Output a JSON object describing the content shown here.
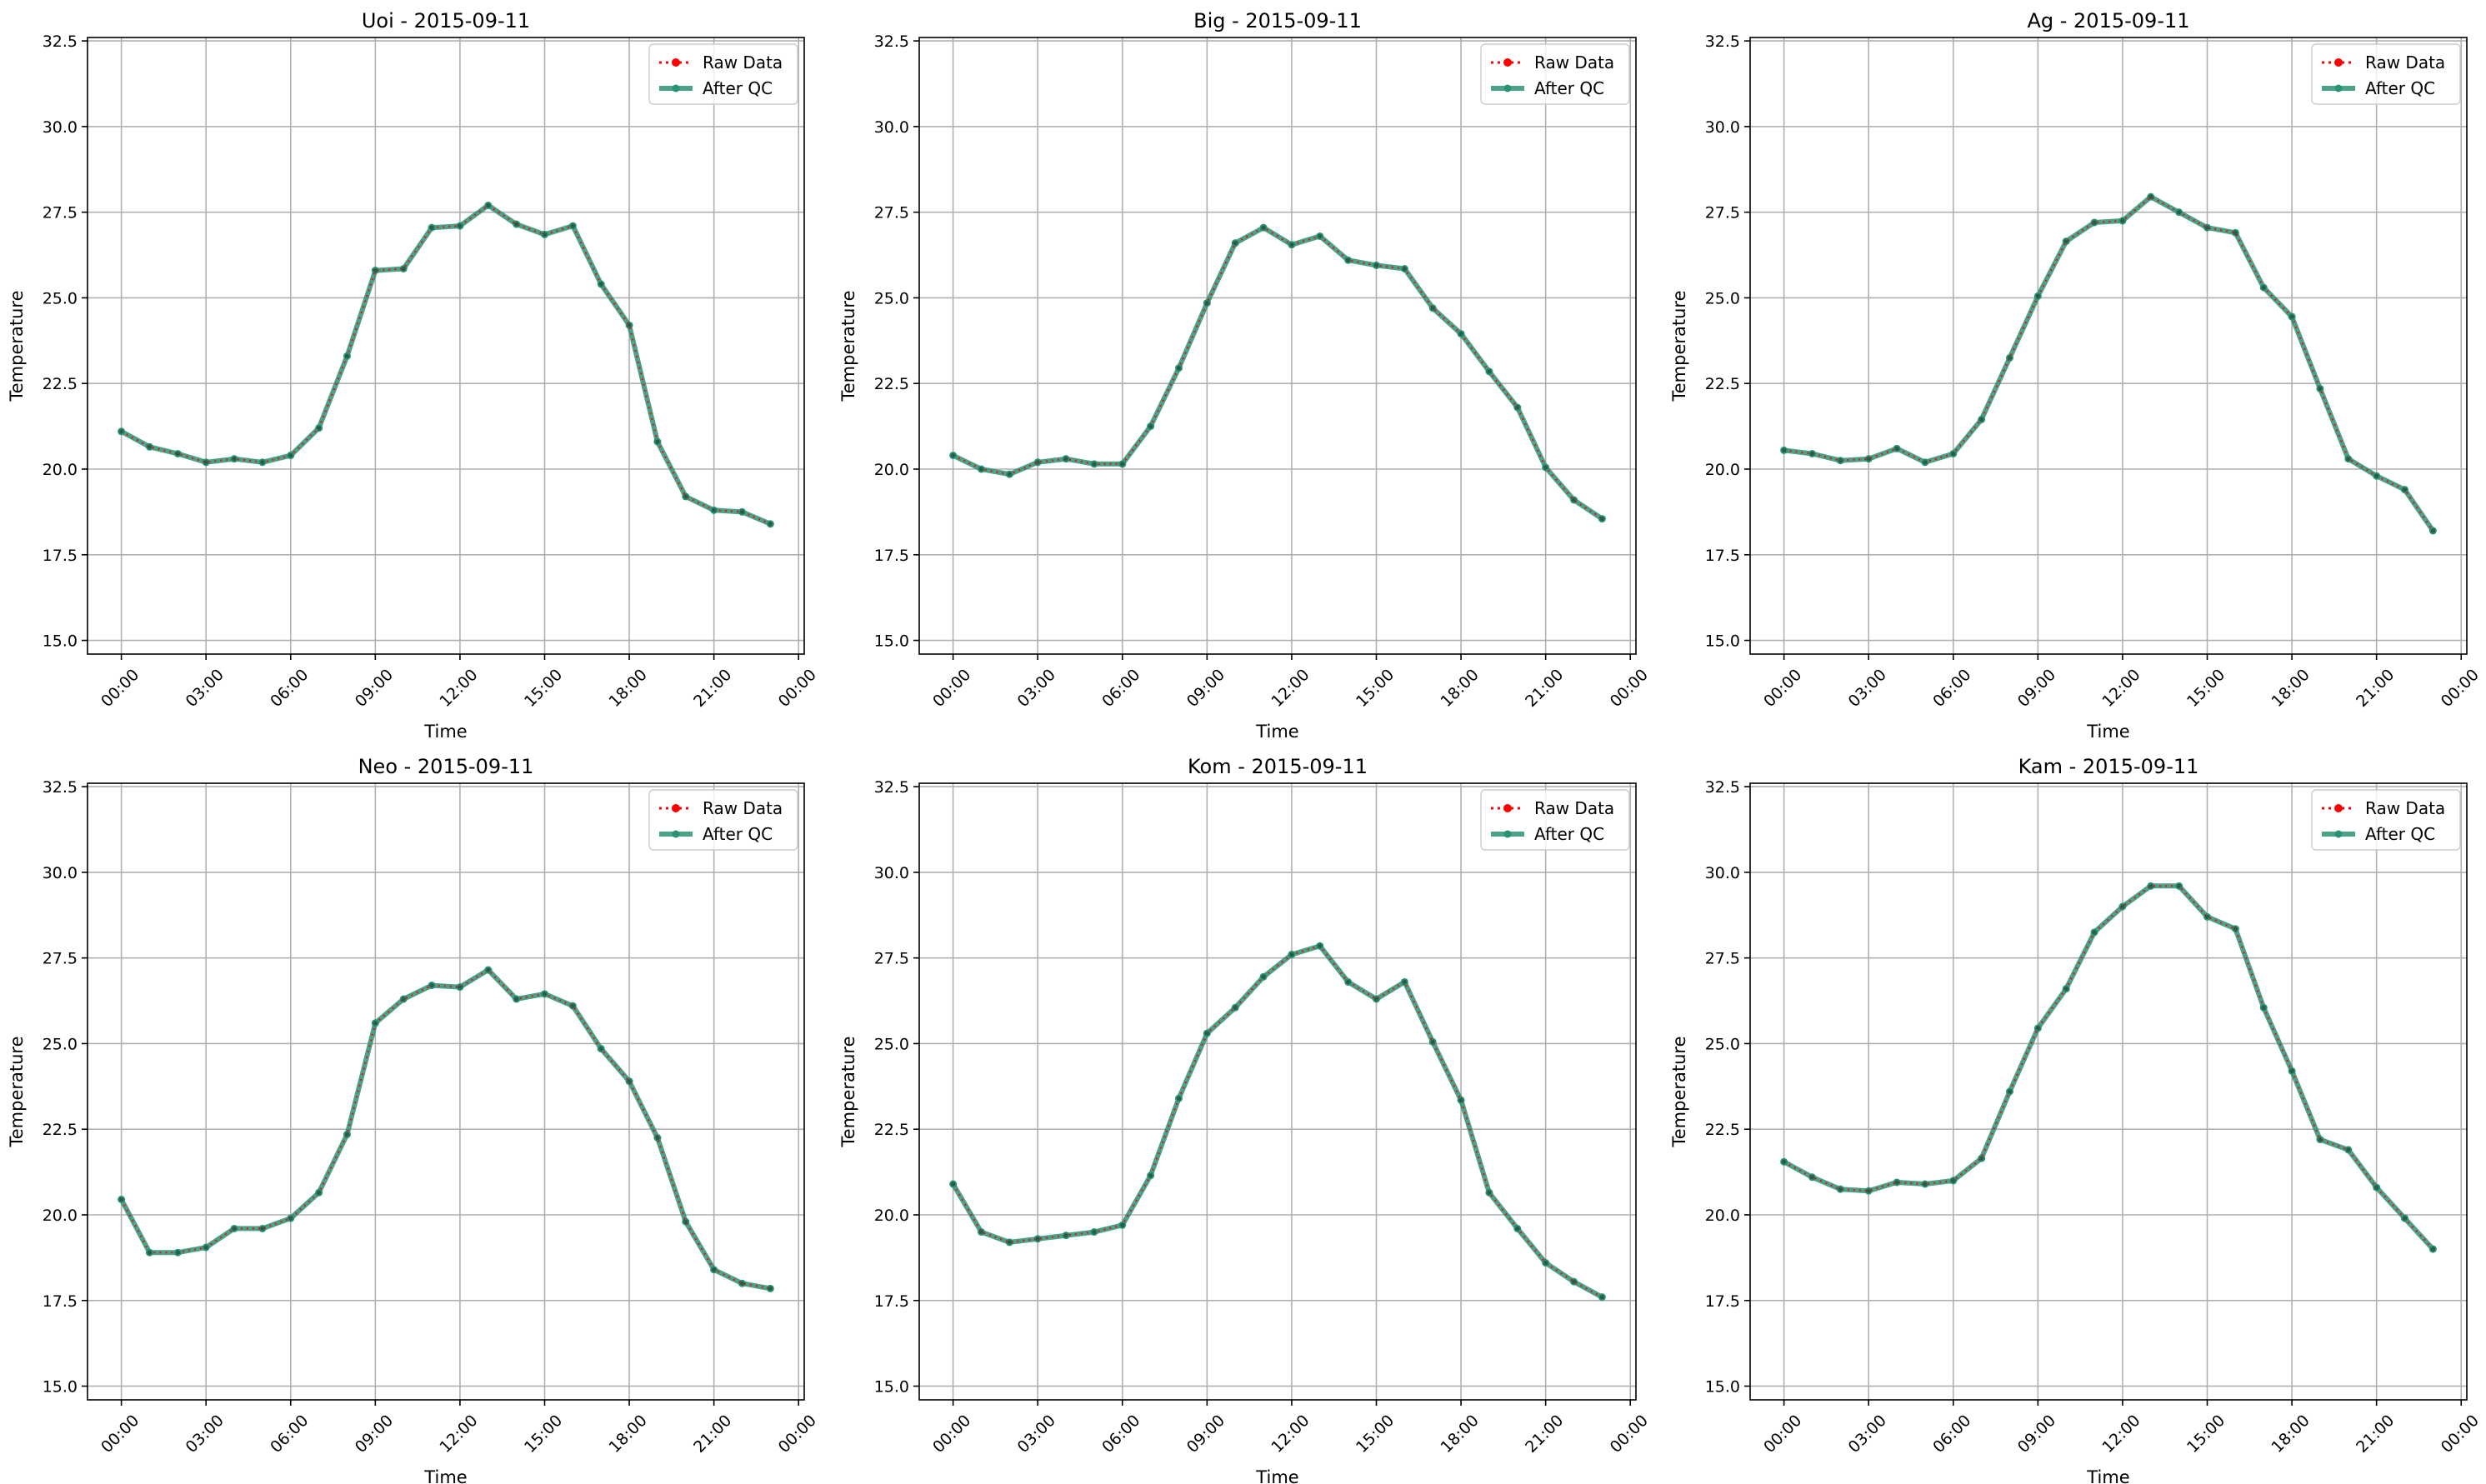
{
  "figure": {
    "background": "#ffffff"
  },
  "colors": {
    "raw": "#ff0000",
    "qc": "#2a9274",
    "grid": "#b0b0b0",
    "axis": "#000000",
    "legend_border": "#cccccc"
  },
  "legend": {
    "placement": "upper-right",
    "entries": [
      "Raw Data",
      "After QC"
    ]
  },
  "chart_data": [
    {
      "type": "line",
      "title": "Uoi - 2015-09-11",
      "xlabel": "Time",
      "ylabel": "Temperature",
      "ylim": [
        14.6,
        32.6
      ],
      "xlim": [
        -1.2,
        24.2
      ],
      "yticks": [
        "15.0",
        "17.5",
        "20.0",
        "22.5",
        "25.0",
        "27.5",
        "30.0",
        "32.5"
      ],
      "xticks": [
        "00:00",
        "03:00",
        "06:00",
        "09:00",
        "12:00",
        "15:00",
        "18:00",
        "21:00",
        "00:00"
      ],
      "grid": true,
      "legend_placement": "upper-right",
      "x": [
        "00:00",
        "01:00",
        "02:00",
        "03:00",
        "04:00",
        "05:00",
        "06:00",
        "07:00",
        "08:00",
        "09:00",
        "10:00",
        "11:00",
        "12:00",
        "13:00",
        "14:00",
        "15:00",
        "16:00",
        "17:00",
        "18:00",
        "19:00",
        "20:00",
        "21:00",
        "22:00",
        "23:00"
      ],
      "series": [
        {
          "name": "Raw Data",
          "values": [
            21.1,
            20.65,
            20.45,
            20.2,
            20.3,
            20.2,
            20.4,
            21.2,
            23.3,
            25.8,
            25.85,
            27.05,
            27.1,
            27.7,
            27.15,
            26.85,
            27.1,
            25.4,
            24.2,
            20.8,
            19.2,
            18.8,
            18.75,
            18.4
          ]
        },
        {
          "name": "After QC",
          "values": [
            21.1,
            20.65,
            20.45,
            20.2,
            20.3,
            20.2,
            20.4,
            21.2,
            23.3,
            25.8,
            25.85,
            27.05,
            27.1,
            27.7,
            27.15,
            26.85,
            27.1,
            25.4,
            24.2,
            20.8,
            19.2,
            18.8,
            18.75,
            18.4
          ]
        }
      ]
    },
    {
      "type": "line",
      "title": "Big - 2015-09-11",
      "xlabel": "Time",
      "ylabel": "Temperature",
      "ylim": [
        14.6,
        32.6
      ],
      "xlim": [
        -1.2,
        24.2
      ],
      "yticks": [
        "15.0",
        "17.5",
        "20.0",
        "22.5",
        "25.0",
        "27.5",
        "30.0",
        "32.5"
      ],
      "xticks": [
        "00:00",
        "03:00",
        "06:00",
        "09:00",
        "12:00",
        "15:00",
        "18:00",
        "21:00",
        "00:00"
      ],
      "grid": true,
      "legend_placement": "upper-right",
      "x": [
        "00:00",
        "01:00",
        "02:00",
        "03:00",
        "04:00",
        "05:00",
        "06:00",
        "07:00",
        "08:00",
        "09:00",
        "10:00",
        "11:00",
        "12:00",
        "13:00",
        "14:00",
        "15:00",
        "16:00",
        "17:00",
        "18:00",
        "19:00",
        "20:00",
        "21:00",
        "22:00",
        "23:00"
      ],
      "series": [
        {
          "name": "Raw Data",
          "values": [
            20.4,
            20.0,
            19.85,
            20.2,
            20.3,
            20.15,
            20.15,
            21.25,
            22.95,
            24.85,
            26.6,
            27.05,
            26.55,
            26.8,
            26.1,
            25.95,
            25.85,
            24.7,
            23.95,
            22.85,
            21.8,
            20.05,
            19.1,
            18.55
          ]
        },
        {
          "name": "After QC",
          "values": [
            20.4,
            20.0,
            19.85,
            20.2,
            20.3,
            20.15,
            20.15,
            21.25,
            22.95,
            24.85,
            26.6,
            27.05,
            26.55,
            26.8,
            26.1,
            25.95,
            25.85,
            24.7,
            23.95,
            22.85,
            21.8,
            20.05,
            19.1,
            18.55
          ]
        }
      ]
    },
    {
      "type": "line",
      "title": "Ag - 2015-09-11",
      "xlabel": "Time",
      "ylabel": "Temperature",
      "ylim": [
        14.6,
        32.6
      ],
      "xlim": [
        -1.2,
        24.2
      ],
      "yticks": [
        "15.0",
        "17.5",
        "20.0",
        "22.5",
        "25.0",
        "27.5",
        "30.0",
        "32.5"
      ],
      "xticks": [
        "00:00",
        "03:00",
        "06:00",
        "09:00",
        "12:00",
        "15:00",
        "18:00",
        "21:00",
        "00:00"
      ],
      "grid": true,
      "legend_placement": "upper-right",
      "x": [
        "00:00",
        "01:00",
        "02:00",
        "03:00",
        "04:00",
        "05:00",
        "06:00",
        "07:00",
        "08:00",
        "09:00",
        "10:00",
        "11:00",
        "12:00",
        "13:00",
        "14:00",
        "15:00",
        "16:00",
        "17:00",
        "18:00",
        "19:00",
        "20:00",
        "21:00",
        "22:00",
        "23:00"
      ],
      "series": [
        {
          "name": "Raw Data",
          "values": [
            20.55,
            20.45,
            20.25,
            20.3,
            20.6,
            20.2,
            20.45,
            21.45,
            23.25,
            25.05,
            26.65,
            27.2,
            27.25,
            27.95,
            27.5,
            27.05,
            26.9,
            25.3,
            24.45,
            22.35,
            20.3,
            19.8,
            19.4,
            18.2
          ]
        },
        {
          "name": "After QC",
          "values": [
            20.55,
            20.45,
            20.25,
            20.3,
            20.6,
            20.2,
            20.45,
            21.45,
            23.25,
            25.05,
            26.65,
            27.2,
            27.25,
            27.95,
            27.5,
            27.05,
            26.9,
            25.3,
            24.45,
            22.35,
            20.3,
            19.8,
            19.4,
            18.2
          ]
        }
      ]
    },
    {
      "type": "line",
      "title": "Neo - 2015-09-11",
      "xlabel": "Time",
      "ylabel": "Temperature",
      "ylim": [
        14.6,
        32.6
      ],
      "xlim": [
        -1.2,
        24.2
      ],
      "yticks": [
        "15.0",
        "17.5",
        "20.0",
        "22.5",
        "25.0",
        "27.5",
        "30.0",
        "32.5"
      ],
      "xticks": [
        "00:00",
        "03:00",
        "06:00",
        "09:00",
        "12:00",
        "15:00",
        "18:00",
        "21:00",
        "00:00"
      ],
      "grid": true,
      "legend_placement": "upper-right",
      "x": [
        "00:00",
        "01:00",
        "02:00",
        "03:00",
        "04:00",
        "05:00",
        "06:00",
        "07:00",
        "08:00",
        "09:00",
        "10:00",
        "11:00",
        "12:00",
        "13:00",
        "14:00",
        "15:00",
        "16:00",
        "17:00",
        "18:00",
        "19:00",
        "20:00",
        "21:00",
        "22:00",
        "23:00"
      ],
      "series": [
        {
          "name": "Raw Data",
          "values": [
            20.45,
            18.9,
            18.9,
            19.05,
            19.6,
            19.6,
            19.9,
            20.65,
            22.35,
            25.6,
            26.3,
            26.7,
            26.65,
            27.15,
            26.3,
            26.45,
            26.1,
            24.85,
            23.9,
            22.25,
            19.8,
            18.4,
            18.0,
            17.85
          ]
        },
        {
          "name": "After QC",
          "values": [
            20.45,
            18.9,
            18.9,
            19.05,
            19.6,
            19.6,
            19.9,
            20.65,
            22.35,
            25.6,
            26.3,
            26.7,
            26.65,
            27.15,
            26.3,
            26.45,
            26.1,
            24.85,
            23.9,
            22.25,
            19.8,
            18.4,
            18.0,
            17.85
          ]
        }
      ]
    },
    {
      "type": "line",
      "title": "Kom - 2015-09-11",
      "xlabel": "Time",
      "ylabel": "Temperature",
      "ylim": [
        14.6,
        32.6
      ],
      "xlim": [
        -1.2,
        24.2
      ],
      "yticks": [
        "15.0",
        "17.5",
        "20.0",
        "22.5",
        "25.0",
        "27.5",
        "30.0",
        "32.5"
      ],
      "xticks": [
        "00:00",
        "03:00",
        "06:00",
        "09:00",
        "12:00",
        "15:00",
        "18:00",
        "21:00",
        "00:00"
      ],
      "grid": true,
      "legend_placement": "upper-right",
      "x": [
        "00:00",
        "01:00",
        "02:00",
        "03:00",
        "04:00",
        "05:00",
        "06:00",
        "07:00",
        "08:00",
        "09:00",
        "10:00",
        "11:00",
        "12:00",
        "13:00",
        "14:00",
        "15:00",
        "16:00",
        "17:00",
        "18:00",
        "19:00",
        "20:00",
        "21:00",
        "22:00",
        "23:00"
      ],
      "series": [
        {
          "name": "Raw Data",
          "values": [
            20.9,
            19.5,
            19.2,
            19.3,
            19.4,
            19.5,
            19.7,
            21.15,
            23.4,
            25.3,
            26.05,
            26.95,
            27.6,
            27.85,
            26.8,
            26.3,
            26.8,
            25.05,
            23.35,
            20.65,
            19.6,
            18.6,
            18.05,
            17.6
          ]
        },
        {
          "name": "After QC",
          "values": [
            20.9,
            19.5,
            19.2,
            19.3,
            19.4,
            19.5,
            19.7,
            21.15,
            23.4,
            25.3,
            26.05,
            26.95,
            27.6,
            27.85,
            26.8,
            26.3,
            26.8,
            25.05,
            23.35,
            20.65,
            19.6,
            18.6,
            18.05,
            17.6
          ]
        }
      ]
    },
    {
      "type": "line",
      "title": "Kam - 2015-09-11",
      "xlabel": "Time",
      "ylabel": "Temperature",
      "ylim": [
        14.6,
        32.6
      ],
      "xlim": [
        -1.2,
        24.2
      ],
      "yticks": [
        "15.0",
        "17.5",
        "20.0",
        "22.5",
        "25.0",
        "27.5",
        "30.0",
        "32.5"
      ],
      "xticks": [
        "00:00",
        "03:00",
        "06:00",
        "09:00",
        "12:00",
        "15:00",
        "18:00",
        "21:00",
        "00:00"
      ],
      "grid": true,
      "legend_placement": "upper-right",
      "x": [
        "00:00",
        "01:00",
        "02:00",
        "03:00",
        "04:00",
        "05:00",
        "06:00",
        "07:00",
        "08:00",
        "09:00",
        "10:00",
        "11:00",
        "12:00",
        "13:00",
        "14:00",
        "15:00",
        "16:00",
        "17:00",
        "18:00",
        "19:00",
        "20:00",
        "21:00",
        "22:00",
        "23:00"
      ],
      "series": [
        {
          "name": "Raw Data",
          "values": [
            21.55,
            21.1,
            20.75,
            20.7,
            20.95,
            20.9,
            21.0,
            21.65,
            23.6,
            25.45,
            26.6,
            28.25,
            29.0,
            29.6,
            29.6,
            28.7,
            28.35,
            26.05,
            24.2,
            22.2,
            21.9,
            20.8,
            19.9,
            19.0
          ]
        },
        {
          "name": "After QC",
          "values": [
            21.55,
            21.1,
            20.75,
            20.7,
            20.95,
            20.9,
            21.0,
            21.65,
            23.6,
            25.45,
            26.6,
            28.25,
            29.0,
            29.6,
            29.6,
            28.7,
            28.35,
            26.05,
            24.2,
            22.2,
            21.9,
            20.8,
            19.9,
            19.0
          ]
        }
      ]
    }
  ]
}
